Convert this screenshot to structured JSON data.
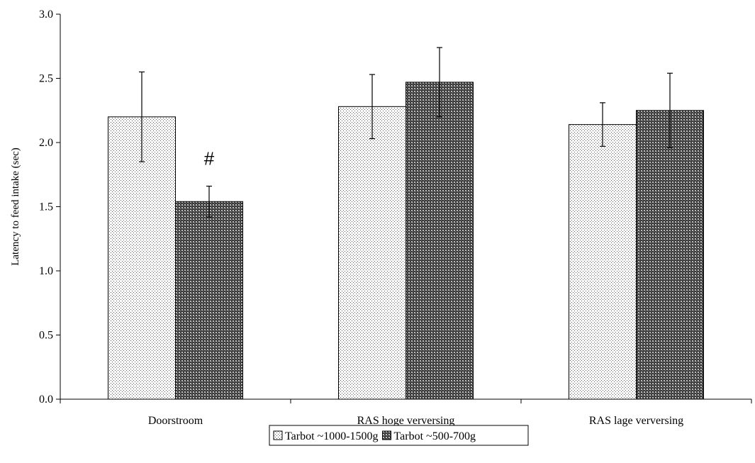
{
  "chart_data": {
    "type": "bar",
    "title": "",
    "xlabel": "",
    "ylabel": "Latency to feed intake (sec)",
    "ylim": [
      0,
      3.0
    ],
    "yticks": [
      "0.0",
      "0.5",
      "1.0",
      "1.5",
      "2.0",
      "2.5",
      "3.0"
    ],
    "categories": [
      "Doorstroom",
      "RAS hoge verversing",
      "RAS lage verversing"
    ],
    "series": [
      {
        "name": "Tarbot ~1000-1500g",
        "values": [
          2.2,
          2.28,
          2.14
        ],
        "error": [
          0.35,
          0.25,
          0.17
        ],
        "pattern": "fine-dots",
        "color": "#f2f2f2"
      },
      {
        "name": "Tarbot ~500-700g",
        "values": [
          1.54,
          2.47,
          2.25
        ],
        "error": [
          0.12,
          0.27,
          0.29
        ],
        "pattern": "dark-crosshatch",
        "color": "#5a5a5a"
      }
    ],
    "annotations": [
      {
        "text": "#",
        "category": "Doorstroom",
        "series": 1
      }
    ],
    "grid": false,
    "legend_position": "bottom"
  }
}
